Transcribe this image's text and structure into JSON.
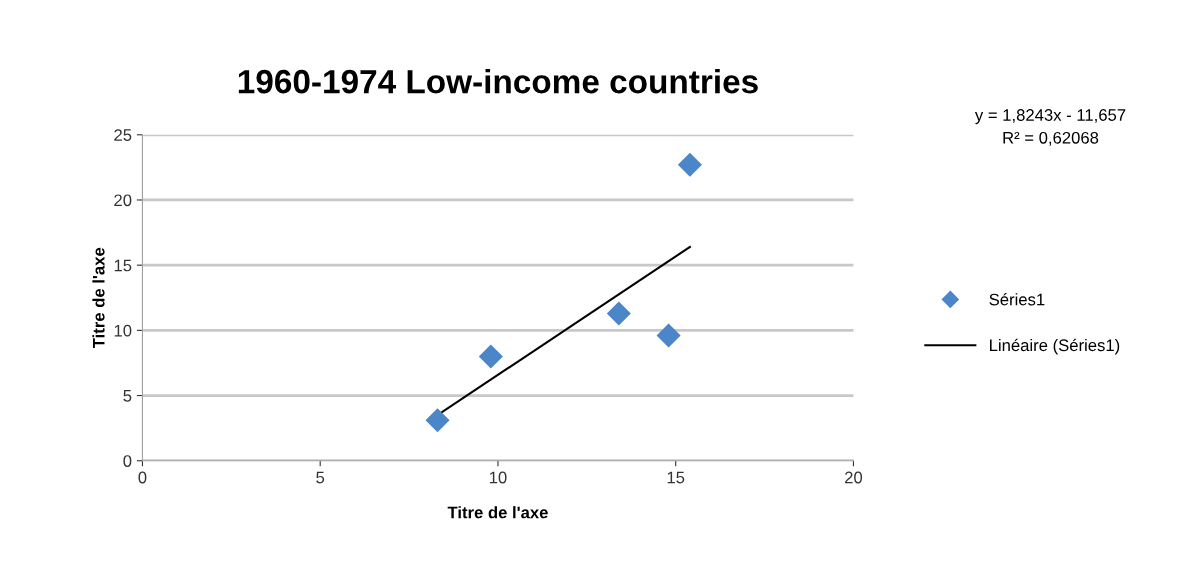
{
  "chart_data": {
    "type": "scatter",
    "title": "1960-1974 Low-income countries",
    "xlabel": "Titre de l'axe",
    "ylabel": "Titre de l'axe",
    "series": [
      {
        "name": "Séries1",
        "color": "#4a86c8",
        "marker": "diamond",
        "x": [
          8.3,
          9.8,
          13.4,
          14.8,
          15.4
        ],
        "values": [
          3.1,
          8.0,
          11.3,
          9.6,
          22.7
        ]
      },
      {
        "name": "Linéaire (Séries1)",
        "type": "line",
        "color": "#000000",
        "marker": "none",
        "line_style": "solid",
        "x": [
          8.3,
          15.4
        ],
        "values": [
          3.5,
          16.4
        ]
      }
    ],
    "annotations": [
      "y = 1,8243x - 11,657\nR² = 0,62068"
    ],
    "xlim": [
      0,
      20
    ],
    "xticks": [
      0,
      5,
      10,
      15,
      20
    ],
    "ylim": [
      0,
      25
    ],
    "yticks": [
      0,
      5,
      10,
      15,
      20,
      25
    ],
    "grid": "y",
    "legend": "right"
  }
}
